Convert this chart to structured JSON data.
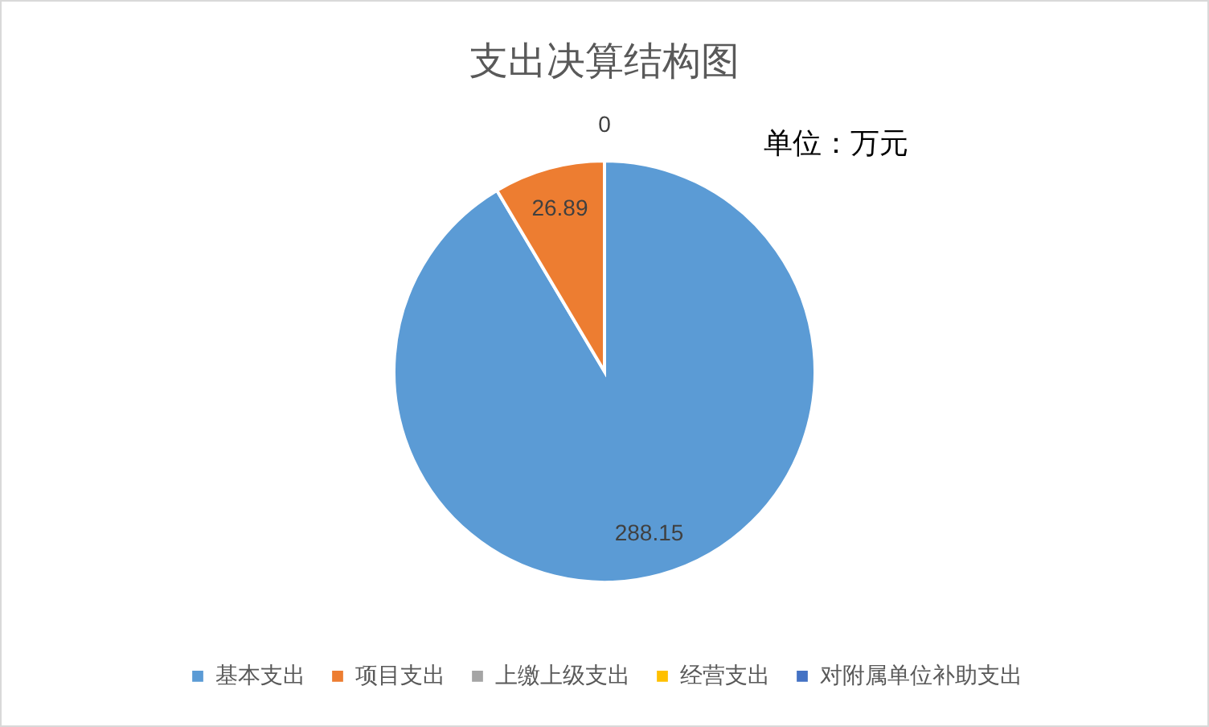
{
  "chart_data": {
    "type": "pie",
    "title": "支出决算结构图",
    "categories": [
      "基本支出",
      "项目支出",
      "上缴上级支出",
      "经营支出",
      "对附属单位补助支出"
    ],
    "values": [
      288.15,
      26.89,
      0,
      0,
      0
    ],
    "colors": [
      "#5b9bd5",
      "#ed7d31",
      "#a5a5a5",
      "#ffc000",
      "#4472c4"
    ],
    "value_labels": [
      "288.15",
      "26.89",
      "0",
      null,
      null
    ],
    "legend": "bottom",
    "annotations": [
      "单位：万元"
    ]
  }
}
